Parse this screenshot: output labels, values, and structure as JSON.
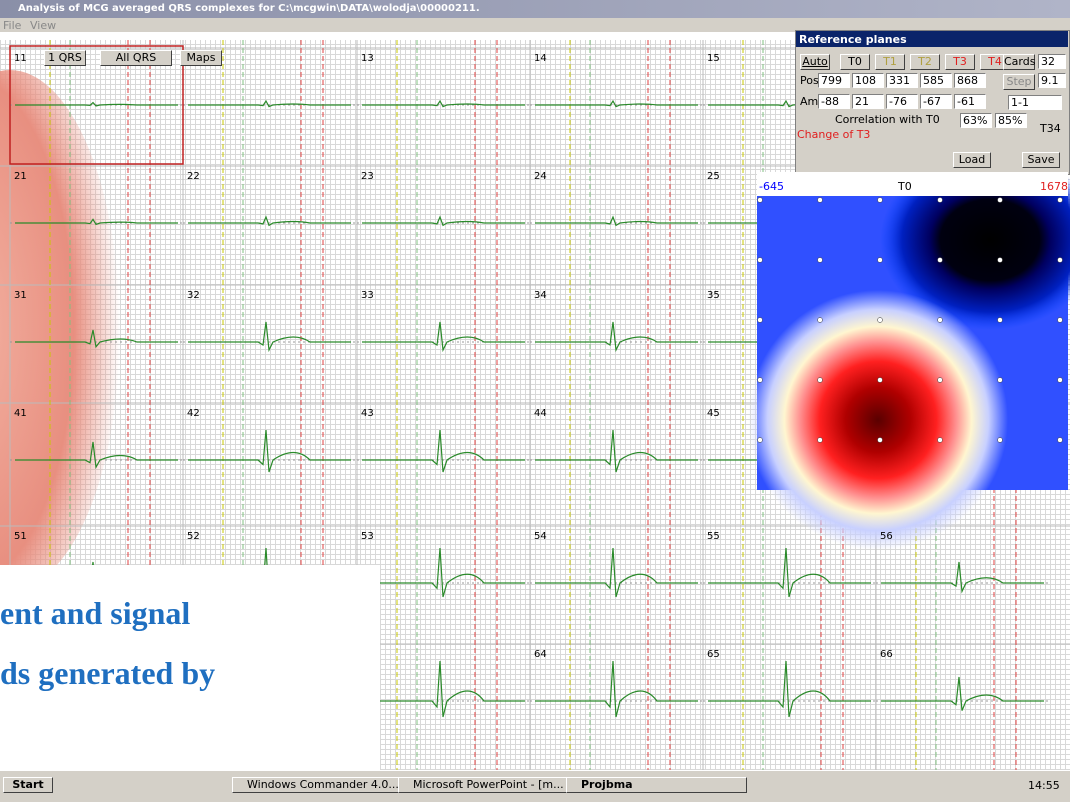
{
  "window": {
    "title": "Analysis of MCG averaged QRS complexes for C:\\mcgwin\\DATA\\wolodja\\00000211.",
    "menu": [
      "File",
      "View"
    ],
    "buttons": [
      "1 QRS",
      "All QRS",
      "Maps"
    ]
  },
  "cells": [
    "11",
    "13",
    "14",
    "15",
    "21",
    "22",
    "23",
    "24",
    "25",
    "31",
    "32",
    "33",
    "34",
    "35",
    "41",
    "42",
    "43",
    "44",
    "45",
    "51",
    "52",
    "53",
    "54",
    "55",
    "56",
    "64",
    "65",
    "66"
  ],
  "reference_planes": {
    "title": "Reference planes",
    "auto": "Auto",
    "planes": [
      "T0",
      "T1",
      "T2",
      "T3",
      "T4"
    ],
    "cards_label": "Cards",
    "cards": "32",
    "pos_label": "Pos",
    "pos": [
      "799",
      "108",
      "331",
      "585",
      "868"
    ],
    "step_label": "Step",
    "step": "9.1",
    "ampl_label": "Ampl",
    "ampl": [
      "-88",
      "21",
      "-76",
      "-67",
      "-61"
    ],
    "selector": "1-1",
    "correlation_label": "Correlation with T0",
    "correlation": [
      "63%",
      "85%"
    ],
    "t34": "T34",
    "status": "Change of T3",
    "load": "Load",
    "save": "Save"
  },
  "map": {
    "min": "-645",
    "plane": "T0",
    "max": "1678"
  },
  "overlay": {
    "lines": [
      "ent and signal",
      "ds generated by"
    ]
  },
  "taskbar": {
    "start": "Start",
    "tasks": [
      "Windows Commander 4.0...",
      "Microsoft PowerPoint - [m...",
      "Projbma"
    ],
    "clock": "14:55"
  }
}
